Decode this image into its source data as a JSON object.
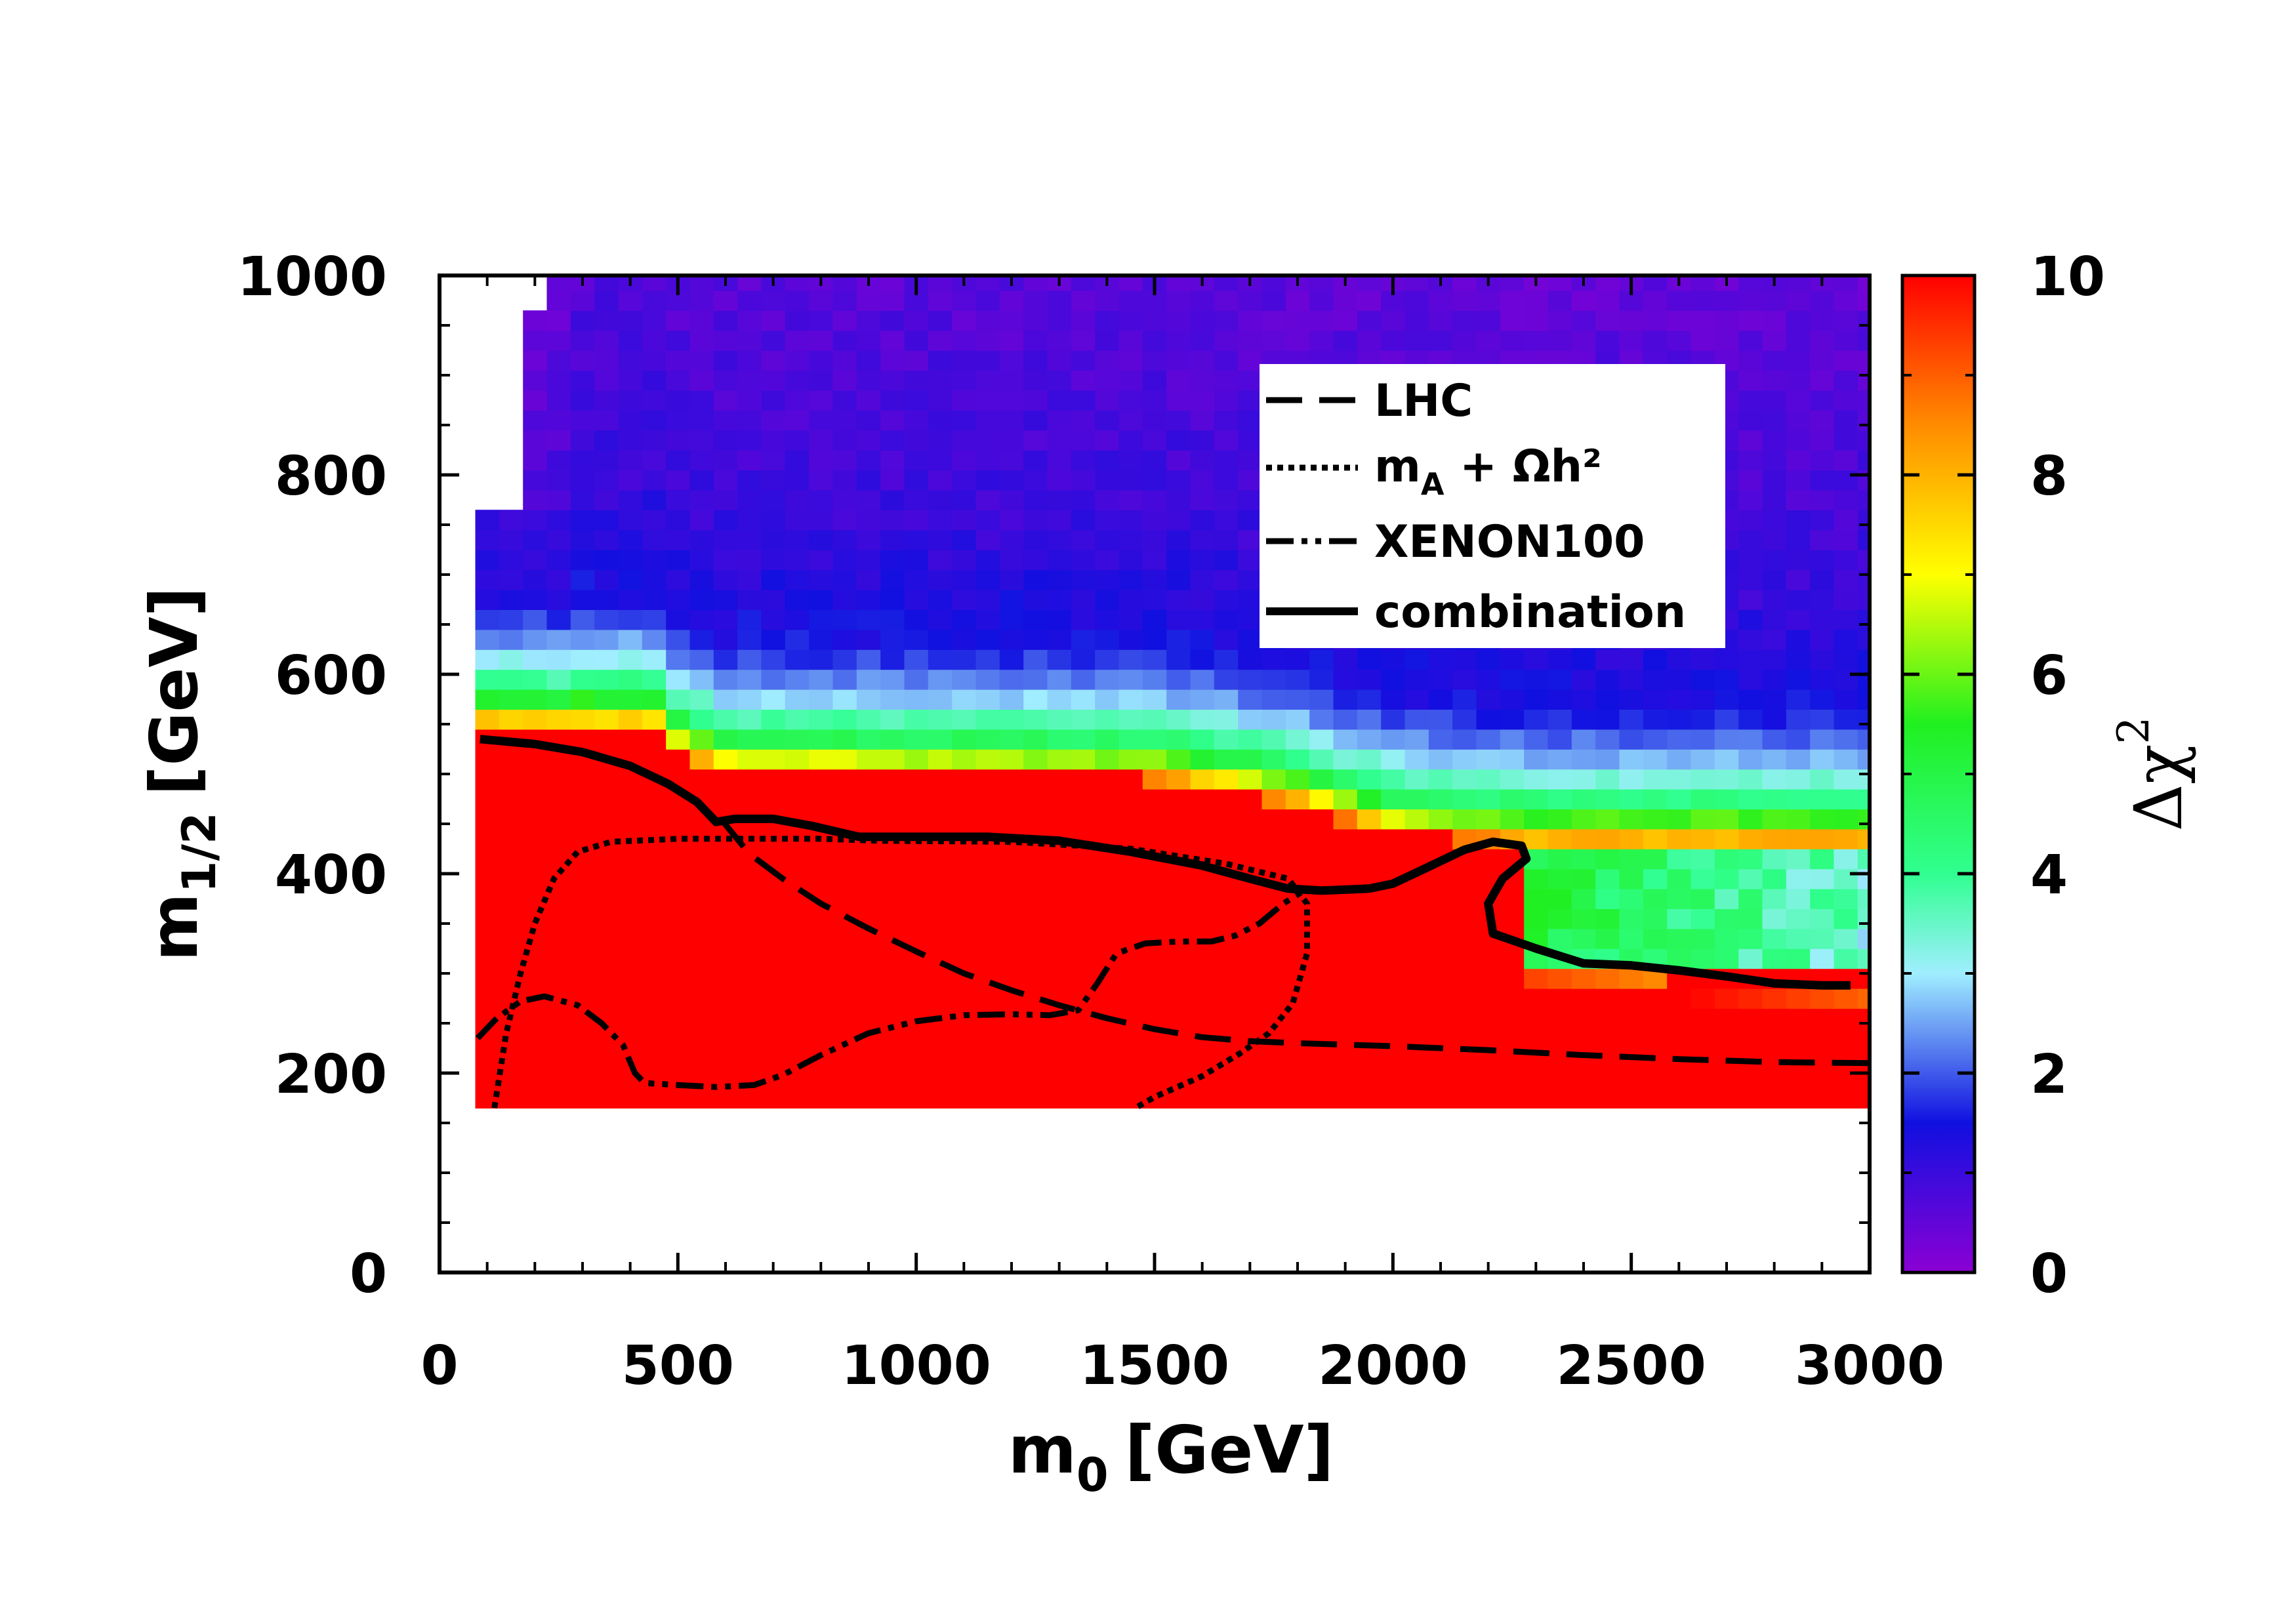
{
  "chart_data": {
    "type": "heatmap",
    "xlabel_main": "m",
    "xlabel_sub": "0",
    "xlabel_unit": "[GeV]",
    "ylabel_main": "m",
    "ylabel_sub": "1/2",
    "ylabel_unit": "[GeV]",
    "xlim": [
      0,
      3000
    ],
    "ylim": [
      0,
      1000
    ],
    "x_ticks": [
      0,
      500,
      1000,
      1500,
      2000,
      2500,
      3000
    ],
    "x_tick_labels": [
      "0",
      "500",
      "1000",
      "1500",
      "2000",
      "2500",
      "3000"
    ],
    "y_ticks": [
      0,
      200,
      400,
      600,
      800,
      1000
    ],
    "y_tick_labels": [
      "0",
      "200",
      "400",
      "600",
      "800",
      "1000"
    ],
    "colorbar": {
      "label_main": "Δχ",
      "label_sup": "2",
      "range": [
        0,
        10
      ],
      "ticks": [
        0,
        2,
        4,
        6,
        8,
        10
      ],
      "tick_labels": [
        "0",
        "2",
        "4",
        "6",
        "8",
        "10"
      ],
      "stops": [
        {
          "v": 0,
          "color": "#8b00d4"
        },
        {
          "v": 1.5,
          "color": "#1010e0"
        },
        {
          "v": 3,
          "color": "#a0eeff"
        },
        {
          "v": 4,
          "color": "#30ff90"
        },
        {
          "v": 5.5,
          "color": "#20f020"
        },
        {
          "v": 7,
          "color": "#ffff00"
        },
        {
          "v": 8.5,
          "color": "#ff8c00"
        },
        {
          "v": 10,
          "color": "#ff0000"
        }
      ]
    },
    "grid": {
      "x_start": 75,
      "x_step": 50,
      "x_count": 59,
      "y_start": 165,
      "y_step": 20,
      "y_count": 42
    },
    "legend": {
      "position": "top-right",
      "entries": [
        {
          "label": "LHC",
          "style": "dashed"
        },
        {
          "label": "m_A + Ωh²",
          "label_main": "m",
          "label_sub": "A",
          "label_rest": " + Ωh²",
          "style": "dotted"
        },
        {
          "label": "XENON100",
          "style": "dash-dot-dot"
        },
        {
          "label": "combination",
          "style": "solid"
        }
      ]
    },
    "series": [
      {
        "name": "LHC",
        "style": "dashed",
        "points": [
          [
            590,
            455
          ],
          [
            650,
            420
          ],
          [
            720,
            395
          ],
          [
            800,
            370
          ],
          [
            900,
            345
          ],
          [
            1000,
            322
          ],
          [
            1100,
            300
          ],
          [
            1200,
            283
          ],
          [
            1300,
            268
          ],
          [
            1400,
            255
          ],
          [
            1500,
            244
          ],
          [
            1600,
            236
          ],
          [
            1700,
            232
          ],
          [
            1800,
            230
          ],
          [
            2000,
            227
          ],
          [
            2200,
            223
          ],
          [
            2400,
            218
          ],
          [
            2600,
            214
          ],
          [
            2800,
            211
          ],
          [
            3000,
            210
          ]
        ]
      },
      {
        "name": "m_A + Ωh²",
        "style": "dotted",
        "points": [
          [
            115,
            165
          ],
          [
            140,
            240
          ],
          [
            170,
            300
          ],
          [
            200,
            350
          ],
          [
            240,
            395
          ],
          [
            290,
            422
          ],
          [
            360,
            432
          ],
          [
            500,
            435
          ],
          [
            800,
            435
          ],
          [
            920,
            433
          ],
          [
            1200,
            432
          ],
          [
            1450,
            425
          ],
          [
            1650,
            410
          ],
          [
            1780,
            395
          ],
          [
            1820,
            370
          ],
          [
            1820,
            320
          ],
          [
            1790,
            270
          ],
          [
            1740,
            240
          ],
          [
            1680,
            220
          ],
          [
            1600,
            197
          ],
          [
            1500,
            176
          ],
          [
            1460,
            165
          ]
        ]
      },
      {
        "name": "XENON100",
        "style": "dash-dot-dot",
        "points": [
          [
            80,
            235
          ],
          [
            120,
            255
          ],
          [
            170,
            272
          ],
          [
            220,
            277
          ],
          [
            290,
            268
          ],
          [
            340,
            250
          ],
          [
            385,
            228
          ],
          [
            410,
            200
          ],
          [
            430,
            190
          ],
          [
            500,
            188
          ],
          [
            580,
            186
          ],
          [
            660,
            188
          ],
          [
            720,
            198
          ],
          [
            800,
            218
          ],
          [
            900,
            240
          ],
          [
            1000,
            252
          ],
          [
            1100,
            258
          ],
          [
            1200,
            259
          ],
          [
            1280,
            258
          ],
          [
            1340,
            263
          ],
          [
            1380,
            290
          ],
          [
            1420,
            320
          ],
          [
            1480,
            330
          ],
          [
            1550,
            332
          ],
          [
            1620,
            332
          ],
          [
            1670,
            338
          ],
          [
            1720,
            350
          ],
          [
            1770,
            370
          ],
          [
            1810,
            382
          ]
        ]
      },
      {
        "name": "combination",
        "style": "solid",
        "points": [
          [
            85,
            535
          ],
          [
            200,
            530
          ],
          [
            300,
            522
          ],
          [
            400,
            508
          ],
          [
            480,
            490
          ],
          [
            540,
            472
          ],
          [
            580,
            452
          ],
          [
            620,
            455
          ],
          [
            700,
            455
          ],
          [
            780,
            448
          ],
          [
            880,
            437
          ],
          [
            1000,
            437
          ],
          [
            1150,
            437
          ],
          [
            1300,
            433
          ],
          [
            1450,
            422
          ],
          [
            1600,
            408
          ],
          [
            1700,
            395
          ],
          [
            1780,
            385
          ],
          [
            1850,
            383
          ],
          [
            1950,
            385
          ],
          [
            2000,
            390
          ],
          [
            2080,
            408
          ],
          [
            2150,
            424
          ],
          [
            2210,
            432
          ],
          [
            2270,
            428
          ],
          [
            2280,
            415
          ],
          [
            2230,
            395
          ],
          [
            2200,
            370
          ],
          [
            2210,
            340
          ],
          [
            2300,
            325
          ],
          [
            2400,
            310
          ],
          [
            2500,
            308
          ],
          [
            2600,
            303
          ],
          [
            2700,
            297
          ],
          [
            2800,
            290
          ],
          [
            2900,
            288
          ],
          [
            2960,
            288
          ]
        ]
      }
    ]
  }
}
